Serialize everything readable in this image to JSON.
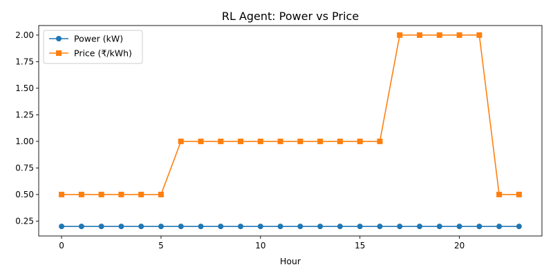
{
  "chart_data": {
    "type": "line",
    "title": "RL Agent: Power vs Price",
    "xlabel": "Hour",
    "ylabel": "",
    "xlim": [
      -1.15,
      24.15
    ],
    "ylim": [
      0.11,
      2.09
    ],
    "xticks": [
      0,
      5,
      10,
      15,
      20
    ],
    "yticks": [
      0.25,
      0.5,
      0.75,
      1.0,
      1.25,
      1.5,
      1.75,
      2.0
    ],
    "ytick_labels": [
      "0.25",
      "0.50",
      "0.75",
      "1.00",
      "1.25",
      "1.50",
      "1.75",
      "2.00"
    ],
    "grid": false,
    "legend": "upper-left",
    "x": [
      0,
      1,
      2,
      3,
      4,
      5,
      6,
      7,
      8,
      9,
      10,
      11,
      12,
      13,
      14,
      15,
      16,
      17,
      18,
      19,
      20,
      21,
      22,
      23
    ],
    "series": [
      {
        "name": "Power (kW)",
        "marker": "circle",
        "color": "#1f77b4",
        "values": [
          0.2,
          0.2,
          0.2,
          0.2,
          0.2,
          0.2,
          0.2,
          0.2,
          0.2,
          0.2,
          0.2,
          0.2,
          0.2,
          0.2,
          0.2,
          0.2,
          0.2,
          0.2,
          0.2,
          0.2,
          0.2,
          0.2,
          0.2,
          0.2
        ]
      },
      {
        "name": "Price (₹/kWh)",
        "marker": "square",
        "color": "#ff7f0e",
        "values": [
          0.5,
          0.5,
          0.5,
          0.5,
          0.5,
          0.5,
          1.0,
          1.0,
          1.0,
          1.0,
          1.0,
          1.0,
          1.0,
          1.0,
          1.0,
          1.0,
          1.0,
          2.0,
          2.0,
          2.0,
          2.0,
          2.0,
          0.5,
          0.5
        ]
      }
    ]
  }
}
